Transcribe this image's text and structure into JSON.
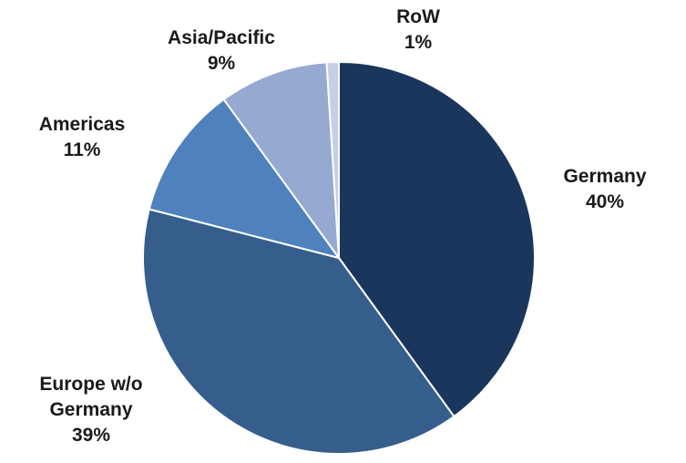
{
  "chart_data": {
    "type": "pie",
    "slices": [
      {
        "label": "Germany",
        "value": 40,
        "value_label": "40%",
        "color": "#1b365d"
      },
      {
        "label": "Europe w/o Germany",
        "value": 39,
        "value_label": "39%",
        "color": "#355e8d"
      },
      {
        "label": "Americas",
        "value": 11,
        "value_label": "11%",
        "color": "#4f81bd"
      },
      {
        "label": "Asia/Pacific",
        "value": 9,
        "value_label": "9%",
        "color": "#95a9d1"
      },
      {
        "label": "RoW",
        "value": 1,
        "value_label": "1%",
        "color": "#c5d0e6"
      }
    ],
    "start_angle_deg": 0,
    "direction": "clockwise",
    "labels_outside": true,
    "legend": "none"
  }
}
